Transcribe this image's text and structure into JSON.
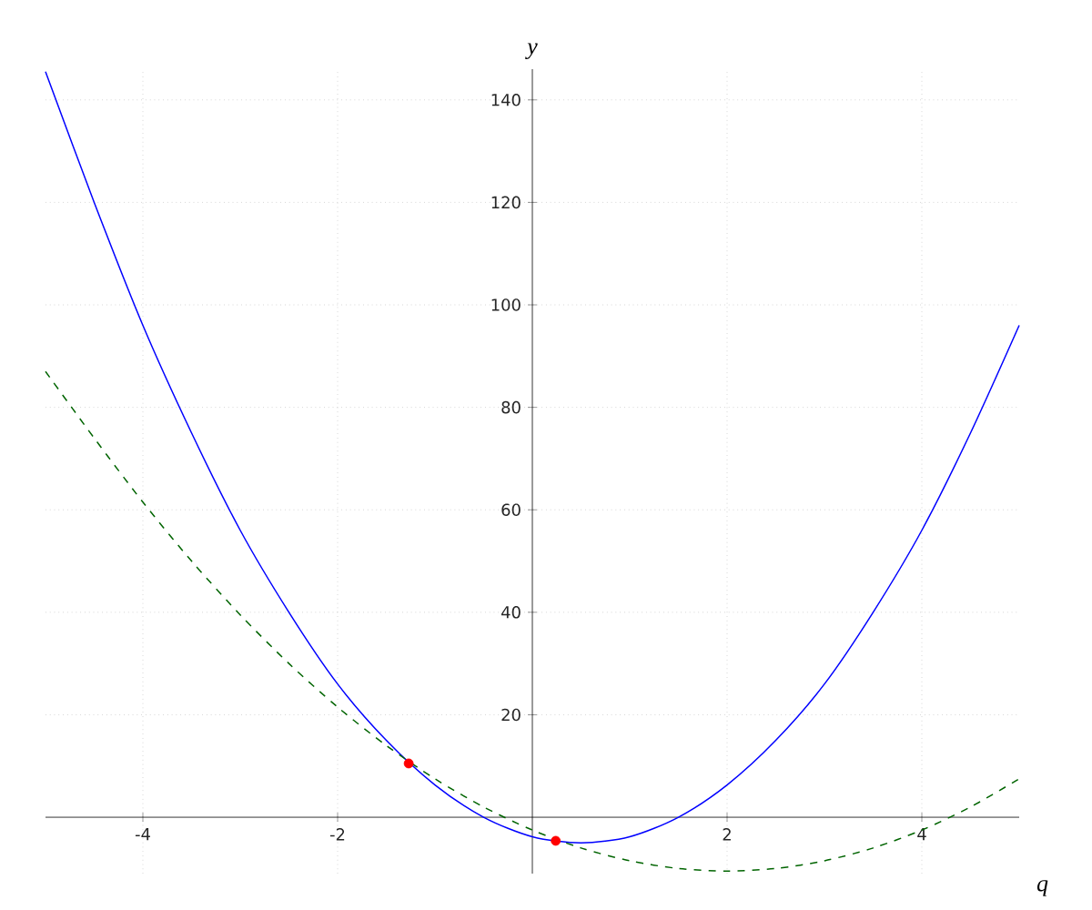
{
  "chart_data": {
    "type": "line",
    "xlabel": "q",
    "ylabel": "y",
    "xlim": [
      -5,
      5
    ],
    "ylim": [
      -11,
      146
    ],
    "xticks": [
      -4,
      -2,
      2,
      4
    ],
    "yticks": [
      20,
      40,
      60,
      80,
      100,
      120,
      140
    ],
    "grid": true,
    "series": [
      {
        "color": "#0000ff",
        "line_style": "solid",
        "x": [
          -5,
          -4.5,
          -4,
          -3.5,
          -3,
          -2.5,
          -2,
          -1.5,
          -1,
          -0.5,
          0,
          0.5,
          1,
          1.5,
          2,
          2.5,
          3,
          3.5,
          4,
          4.5,
          5
        ],
        "values": [
          145.5,
          120,
          96,
          75,
          56,
          40,
          26,
          15,
          6.3,
          0,
          -3.8,
          -5,
          -3.8,
          0,
          6.3,
          15,
          26,
          40,
          56,
          75,
          96
        ]
      },
      {
        "color": "#006400",
        "line_style": "dashed",
        "x": [
          -5,
          -4.5,
          -4,
          -3.5,
          -3,
          -2.5,
          -2,
          -1.5,
          -1,
          -0.5,
          0,
          0.5,
          1,
          1.5,
          2,
          2.5,
          3,
          3.5,
          4,
          4.5,
          5
        ],
        "values": [
          87,
          74,
          61.5,
          50,
          39.5,
          30,
          21.5,
          14,
          7.5,
          2,
          -2.5,
          -6,
          -8.5,
          -10,
          -10.5,
          -10,
          -8.5,
          -6,
          -2.5,
          2,
          7.5
        ]
      },
      {
        "type": "scatter",
        "color": "#ff0000",
        "x": [
          -1.27,
          0.24
        ],
        "values": [
          10.5,
          -4.6
        ]
      }
    ]
  }
}
